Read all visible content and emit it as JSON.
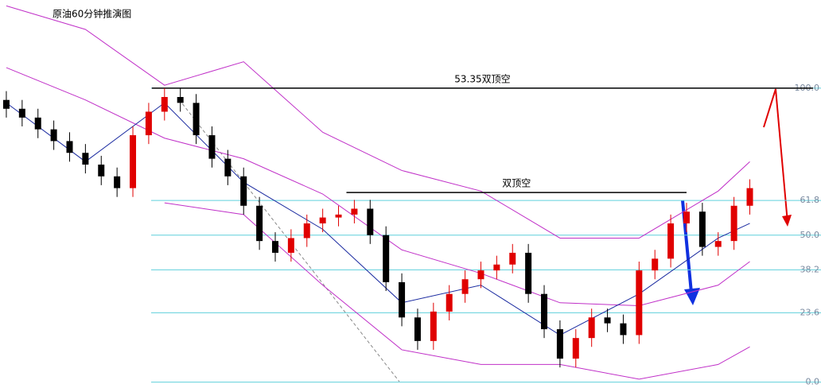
{
  "chart_data": {
    "type": "candlestick",
    "title": "原油60分钟推演图",
    "xlim": [
      -0.4,
      51.5
    ],
    "ylim": [
      -2,
      130
    ],
    "yticks": [
      {
        "value": 100,
        "label": "100.0"
      },
      61.8,
      {
        "value": 50,
        "label": "50.0"
      },
      38.2,
      23.6,
      {
        "value": 0,
        "label": "0.0"
      }
    ],
    "grid": true,
    "grid_color": "#5fd0dc",
    "up_color": "#e00000",
    "down_color": "#000000",
    "open": [
      96,
      93,
      90,
      86,
      82,
      78,
      74,
      70,
      66,
      84,
      92,
      97,
      95,
      84,
      76,
      70,
      60,
      48,
      44,
      49,
      54,
      56,
      57,
      59,
      50,
      34,
      22,
      14,
      24,
      30,
      35,
      38,
      40,
      44,
      30,
      18,
      8,
      15,
      22,
      20,
      16,
      38,
      42,
      54,
      58,
      46,
      48,
      60
    ],
    "high": [
      99,
      96,
      93,
      89,
      85,
      81,
      77,
      73,
      87,
      95,
      100,
      100,
      98,
      87,
      79,
      73,
      63,
      51,
      52,
      57,
      59,
      60,
      62,
      62,
      53,
      37,
      25,
      27,
      33,
      38,
      41,
      43,
      47,
      47,
      33,
      21,
      18,
      25,
      25,
      23,
      41,
      45,
      57,
      61,
      61,
      51,
      63,
      69
    ],
    "low": [
      90,
      87,
      83,
      79,
      75,
      71,
      67,
      63,
      63,
      81,
      89,
      92,
      81,
      73,
      67,
      57,
      45,
      41,
      41,
      46,
      51,
      53,
      54,
      47,
      31,
      19,
      11,
      11,
      21,
      27,
      32,
      35,
      37,
      27,
      15,
      5,
      5,
      12,
      17,
      13,
      13,
      35,
      39,
      51,
      43,
      43,
      45,
      57
    ],
    "close": [
      93,
      90,
      86,
      82,
      78,
      74,
      70,
      66,
      84,
      92,
      97,
      95,
      84,
      76,
      70,
      60,
      48,
      44,
      49,
      54,
      56,
      57,
      59,
      50,
      34,
      22,
      14,
      24,
      30,
      35,
      38,
      40,
      44,
      30,
      18,
      8,
      15,
      22,
      20,
      16,
      38,
      42,
      54,
      58,
      46,
      48,
      60,
      66
    ],
    "lines": [
      {
        "color": "#c030c8",
        "x": [
          0,
          5,
          10,
          15,
          20,
          25,
          30,
          35,
          40,
          45,
          47
        ],
        "values": [
          128,
          120,
          101,
          109,
          85,
          72,
          65,
          49,
          49,
          65,
          75
        ]
      },
      {
        "color": "#c030c8",
        "x": [
          0,
          5,
          10,
          15,
          20,
          25,
          30,
          35,
          40,
          45,
          47
        ],
        "values": [
          107,
          96,
          83,
          76,
          64,
          45,
          37,
          27,
          26,
          33,
          41
        ]
      },
      {
        "color": "#c030c8",
        "x": [
          0,
          5,
          10,
          15,
          20,
          25,
          30,
          35,
          40,
          45,
          47
        ],
        "values": [
          null,
          null,
          61,
          57,
          33,
          11,
          6,
          6,
          1,
          6,
          12
        ]
      },
      {
        "color": "#1a2aa0",
        "x": [
          0,
          5,
          10,
          15,
          20,
          25,
          30,
          35,
          40,
          45,
          47
        ],
        "values": [
          95,
          75,
          95,
          68,
          52,
          27,
          33,
          16,
          30,
          49,
          54
        ]
      }
    ],
    "annotations": [
      {
        "text": "53.35双顶空",
        "level": 100,
        "x": [
          9.2,
          51
        ]
      },
      {
        "text": "双顶空",
        "level": 64.5,
        "x": [
          21.5,
          43
        ]
      }
    ]
  }
}
